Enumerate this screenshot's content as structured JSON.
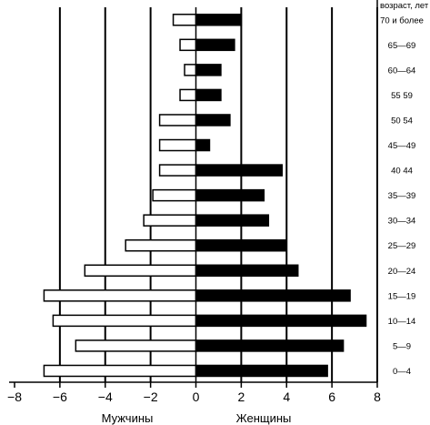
{
  "chart_data": {
    "type": "bar",
    "orientation": "horizontal",
    "categories": [
      "70 и более",
      "65—69",
      "60—64",
      "55  59",
      "50  54",
      "45—49",
      "40  44",
      "35—39",
      "30—34",
      "25—29",
      "20—24",
      "15—19",
      "10—14",
      "5—9",
      "0—4"
    ],
    "series": [
      {
        "name": "Мужчины",
        "color": "#ffffff",
        "values": [
          -1.0,
          -0.7,
          -0.5,
          -0.7,
          -1.6,
          -1.6,
          -1.6,
          -1.9,
          -2.3,
          -3.1,
          -4.9,
          -6.7,
          -6.3,
          -5.3,
          -6.7
        ]
      },
      {
        "name": "Женщины",
        "color": "#000000",
        "values": [
          2.0,
          1.7,
          1.1,
          1.1,
          1.5,
          0.6,
          3.8,
          3.0,
          3.2,
          4.0,
          4.5,
          6.8,
          7.5,
          6.5,
          5.8
        ]
      }
    ],
    "xlim": [
      -8,
      8
    ],
    "xticks": [
      "−8",
      "−6",
      "−4",
      "−2",
      "0",
      "2",
      "4",
      "6",
      "8"
    ],
    "xlabel_left": "Мужчины",
    "xlabel_right": "Женщины",
    "category_axis_title": "возраст, лет",
    "grid": "vertical lines at even values",
    "legend": "none"
  }
}
